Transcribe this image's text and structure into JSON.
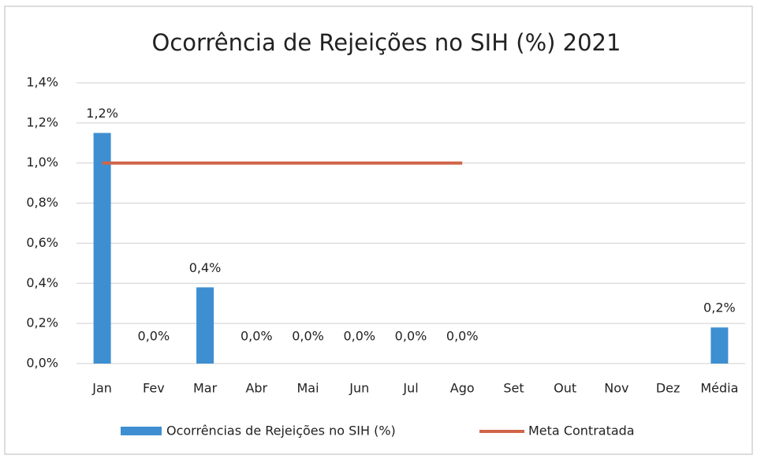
{
  "chart_data": {
    "type": "bar",
    "title": "Ocorrência de Rejeições no SIH (%) 2021",
    "categories": [
      "Jan",
      "Fev",
      "Mar",
      "Abr",
      "Mai",
      "Jun",
      "Jul",
      "Ago",
      "Set",
      "Out",
      "Nov",
      "Dez",
      "Média"
    ],
    "series": [
      {
        "name": "Ocorrências de Rejeições no SIH (%)",
        "type": "bar",
        "color": "#3d8fd1",
        "values": [
          1.15,
          0,
          0.38,
          0,
          0,
          0,
          0,
          0,
          null,
          null,
          null,
          null,
          0.18
        ],
        "value_labels": [
          "1,2%",
          "0,0%",
          "0,4%",
          "0,0%",
          "0,0%",
          "0,0%",
          "0,0%",
          "0,0%",
          null,
          null,
          null,
          null,
          "0,2%"
        ]
      },
      {
        "name": "Meta Contratada",
        "type": "line",
        "color": "#d0654a",
        "values": [
          1,
          1,
          1,
          1,
          1,
          1,
          1,
          1,
          null,
          null,
          null,
          null,
          null
        ]
      }
    ],
    "ylim": [
      0,
      1.4
    ],
    "yticks": [
      {
        "value": 0,
        "label": "0,0%"
      },
      {
        "value": 0.2,
        "label": "0,2%"
      },
      {
        "value": 0.4,
        "label": "0,4%"
      },
      {
        "value": 0.6,
        "label": "0,6%"
      },
      {
        "value": 0.8,
        "label": "0,8%"
      },
      {
        "value": 1,
        "label": "1,0%"
      },
      {
        "value": 1.2,
        "label": "1,2%"
      },
      {
        "value": 1.4,
        "label": "1,4%"
      }
    ],
    "grid": true,
    "legend": "bottom"
  }
}
